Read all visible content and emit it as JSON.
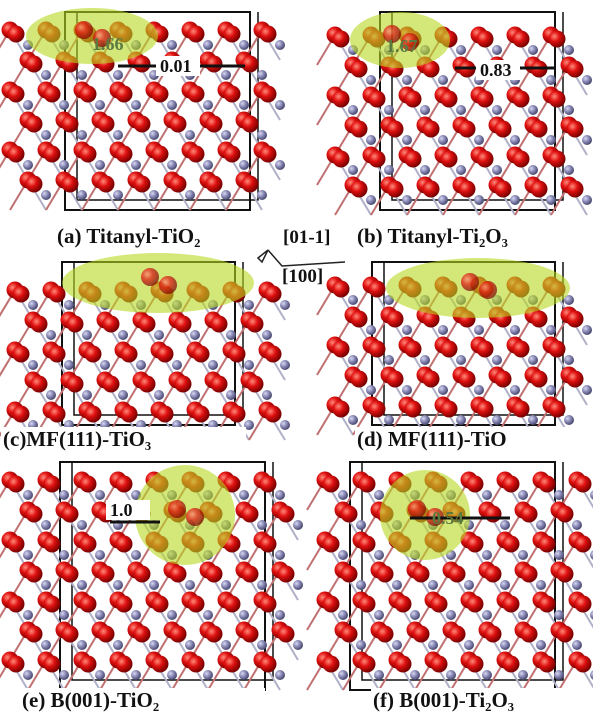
{
  "panels": [
    {
      "label": "(a) Titanyl-TiO₂",
      "annotations": [
        "1.66",
        "0.01"
      ]
    },
    {
      "label": "(b) Titanyl-Ti₂O₃",
      "annotations": [
        "1.67",
        "0.83"
      ]
    },
    {
      "label": "(c)MF(111)-TiO₃",
      "annotations": []
    },
    {
      "label": "(d) MF(111)-TiO",
      "annotations": []
    },
    {
      "label": "(e) B(001)-TiO₂",
      "annotations": [
        "1.0"
      ]
    },
    {
      "label": "(f) B(001)-Ti₂O₃",
      "annotations": [
        "0.54"
      ]
    }
  ],
  "directions": {
    "vertical": "[01-1]",
    "horizontal": "[100]"
  }
}
